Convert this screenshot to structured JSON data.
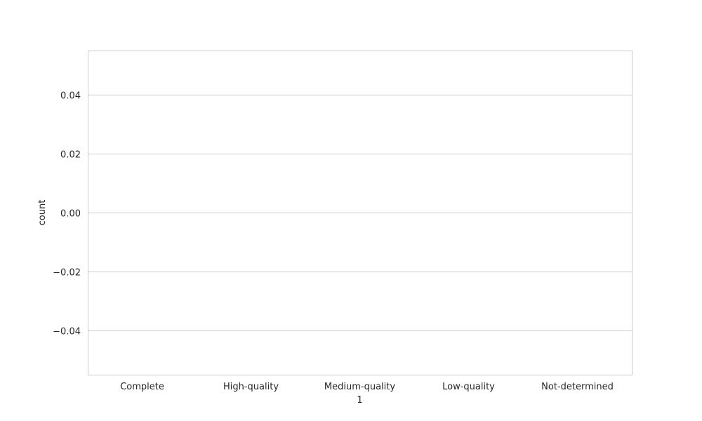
{
  "chart_data": {
    "type": "bar",
    "categories": [
      "Complete",
      "High-quality",
      "Medium-quality",
      "Low-quality",
      "Not-determined"
    ],
    "values": [
      0,
      0,
      0,
      0,
      0
    ],
    "xlabel": "1",
    "ylabel": "count",
    "ylim": [
      -0.055,
      0.055
    ],
    "yticks": [
      0.04,
      0.02,
      0.0,
      -0.02,
      -0.04
    ],
    "ytick_labels": [
      "0.04",
      "0.02",
      "0.00",
      "−0.02",
      "−0.04"
    ],
    "grid": true,
    "style": {
      "background": "#ffffff",
      "grid_color": "#cccccc",
      "frame_color": "#cccccc",
      "text_color": "#262626"
    }
  }
}
